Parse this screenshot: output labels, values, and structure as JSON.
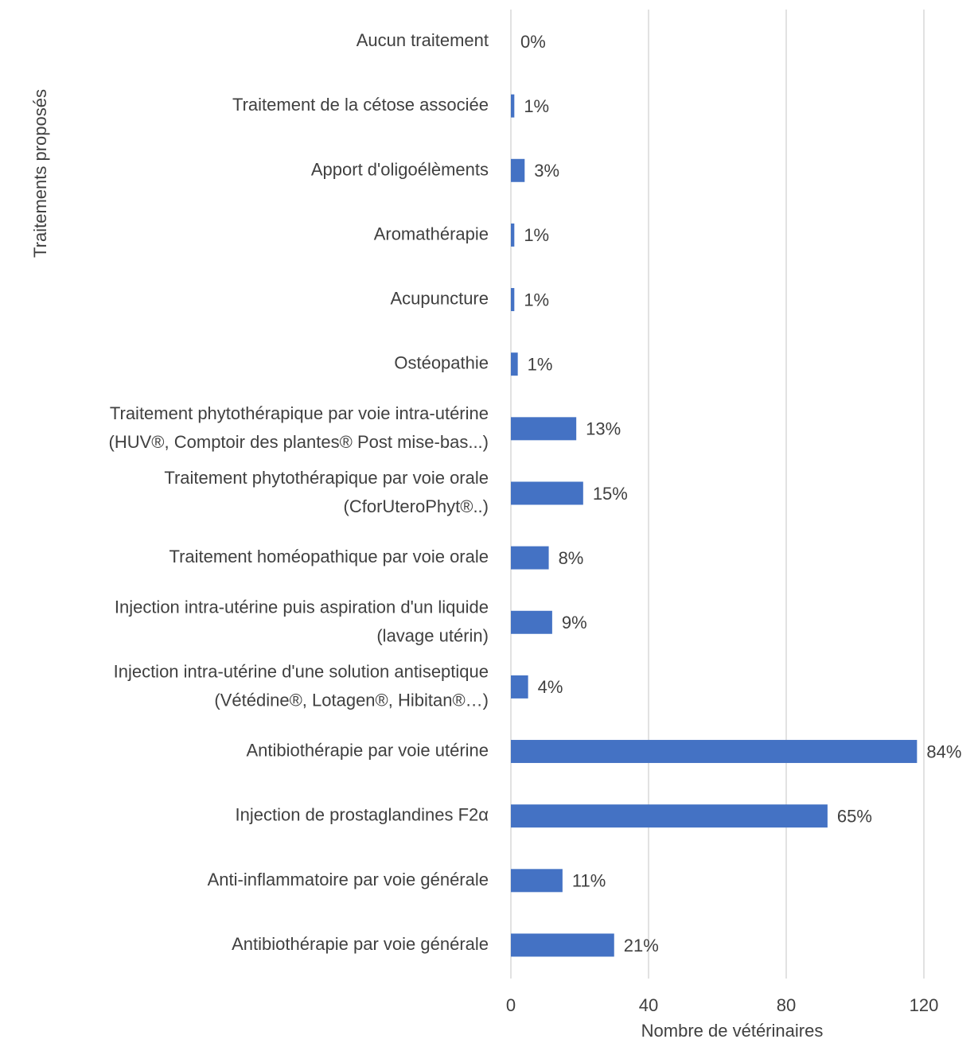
{
  "chart_data": {
    "type": "barh",
    "x_label": "Nombre de vétérinaires",
    "y_label": "Traitements proposés",
    "categories": [
      "Aucun traitement",
      "Traitement de la cétose associée",
      "Apport d'oligoélèments",
      "Aromathérapie",
      "Acupuncture",
      "Ostéopathie",
      "Traitement phytothérapique par voie intra-utérine\n(HUV®, Comptoir des plantes® Post mise-bas...)",
      "Traitement phytothérapique par voie orale\n(CforUteroPhyt®..)",
      "Traitement homéopathique par voie orale",
      "Injection intra-utérine puis aspiration d'un liquide\n(lavage utérin)",
      "Injection intra-utérine d'une solution antiseptique\n(Vétédine®, Lotagen®, Hibitan®…)",
      "Antibiothérapie par voie utérine",
      "Injection de prostaglandines F2α",
      "Anti-inflammatoire par voie générale",
      "Antibiothérapie par voie générale"
    ],
    "values": [
      0,
      1,
      4,
      1,
      1,
      2,
      19,
      21,
      11,
      12,
      5,
      118,
      92,
      15,
      30
    ],
    "value_labels": [
      "0%",
      "1%",
      "3%",
      "1%",
      "1%",
      "1%",
      "13%",
      "15%",
      "8%",
      "9%",
      "4%",
      "84%",
      "65%",
      "11%",
      "21%"
    ],
    "color": "#4472c4",
    "xlim": [
      0,
      120
    ],
    "xticks": [
      0,
      40,
      80,
      120
    ],
    "grid": true
  }
}
